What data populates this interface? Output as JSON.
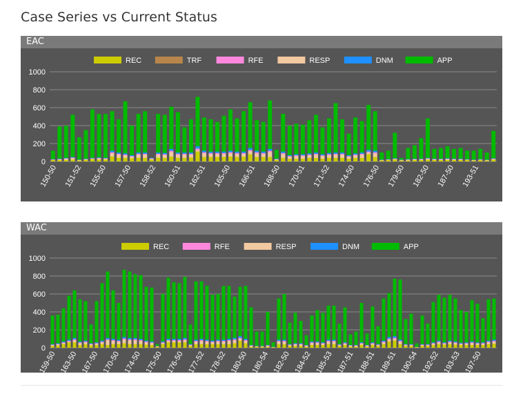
{
  "page": {
    "title": "Case Series vs Current Status"
  },
  "chart_data": [
    {
      "type": "bar",
      "stacked": true,
      "title": "EAC",
      "ylim": [
        0,
        1000
      ],
      "yticks": [
        0,
        200,
        400,
        600,
        800,
        1000
      ],
      "grid": true,
      "legend": "top-center",
      "series": [
        {
          "name": "REC",
          "color": "#cccc00"
        },
        {
          "name": "TRF",
          "color": "#b8864b"
        },
        {
          "name": "RFE",
          "color": "#ff88dd"
        },
        {
          "name": "RESP",
          "color": "#f2c9a0"
        },
        {
          "name": "DNM",
          "color": "#1e90ff"
        },
        {
          "name": "APP",
          "color": "#00bb00"
        }
      ],
      "tick_labels": [
        "150-50",
        "151-52",
        "155-50",
        "157-50",
        "158-52",
        "160-51",
        "162-51",
        "165-50",
        "166-51",
        "168-50",
        "170-51",
        "171-52",
        "174-50",
        "176-50",
        "179-50",
        "182-50",
        "187-50",
        "193-51"
      ],
      "totals": [
        120,
        390,
        400,
        520,
        270,
        350,
        580,
        530,
        530,
        560,
        470,
        670,
        400,
        530,
        560,
        40,
        530,
        520,
        610,
        550,
        380,
        470,
        720,
        490,
        470,
        440,
        510,
        580,
        480,
        560,
        660,
        460,
        440,
        680,
        130,
        530,
        400,
        420,
        410,
        460,
        520,
        380,
        480,
        650,
        470,
        310,
        490,
        450,
        630,
        560,
        100,
        120,
        320,
        40,
        150,
        180,
        260,
        480,
        140,
        150,
        170,
        140,
        150,
        120,
        120,
        140,
        100,
        340
      ],
      "rec": [
        15,
        15,
        15,
        20,
        10,
        15,
        25,
        20,
        20,
        55,
        40,
        40,
        35,
        40,
        40,
        20,
        40,
        40,
        55,
        40,
        40,
        45,
        110,
        50,
        50,
        50,
        50,
        55,
        50,
        55,
        80,
        50,
        50,
        50,
        15,
        40,
        30,
        30,
        30,
        40,
        40,
        30,
        40,
        40,
        40,
        30,
        40,
        40,
        80,
        50,
        10,
        15,
        20,
        10,
        10,
        15,
        15,
        20,
        15,
        15,
        15,
        15,
        15,
        15,
        10,
        15,
        10,
        20
      ],
      "stack": [
        25,
        30,
        40,
        50,
        20,
        30,
        40,
        45,
        40,
        120,
        100,
        90,
        70,
        100,
        100,
        40,
        100,
        95,
        140,
        100,
        100,
        100,
        170,
        120,
        110,
        110,
        110,
        120,
        110,
        110,
        150,
        120,
        110,
        140,
        30,
        110,
        70,
        80,
        80,
        90,
        100,
        80,
        95,
        100,
        100,
        70,
        90,
        100,
        130,
        120,
        20,
        25,
        35,
        20,
        25,
        30,
        30,
        40,
        30,
        30,
        35,
        30,
        30,
        25,
        20,
        25,
        20,
        35
      ]
    },
    {
      "type": "bar",
      "stacked": true,
      "title": "WAC",
      "ylim": [
        0,
        1000
      ],
      "yticks": [
        0,
        200,
        400,
        600,
        800,
        1000
      ],
      "grid": true,
      "legend": "top-center",
      "series": [
        {
          "name": "REC",
          "color": "#cccc00"
        },
        {
          "name": "RFE",
          "color": "#ff88dd"
        },
        {
          "name": "RESP",
          "color": "#f2c9a0"
        },
        {
          "name": "DNM",
          "color": "#1e90ff"
        },
        {
          "name": "APP",
          "color": "#00bb00"
        }
      ],
      "tick_labels": [
        "159-50",
        "163-50",
        "167-50",
        "170-50",
        "174-50",
        "175-50",
        "176-50",
        "177-52",
        "178-52",
        "180-50",
        "180-54",
        "182-50",
        "184-52",
        "185-53",
        "187-51",
        "188-51",
        "189-51",
        "190-54",
        "192-52",
        "193-53",
        "197-50"
      ],
      "totals": [
        360,
        370,
        440,
        580,
        640,
        540,
        520,
        260,
        520,
        720,
        850,
        640,
        500,
        870,
        850,
        820,
        810,
        680,
        670,
        40,
        600,
        780,
        730,
        720,
        790,
        260,
        740,
        740,
        690,
        590,
        600,
        690,
        690,
        570,
        680,
        690,
        450,
        180,
        180,
        400,
        60,
        550,
        600,
        280,
        390,
        300,
        140,
        360,
        420,
        390,
        470,
        470,
        270,
        450,
        150,
        180,
        500,
        160,
        460,
        240,
        550,
        610,
        770,
        760,
        320,
        380,
        50,
        360,
        270,
        510,
        590,
        560,
        590,
        550,
        420,
        400,
        530,
        490,
        330,
        540,
        550
      ],
      "rec": [
        20,
        25,
        40,
        60,
        60,
        30,
        40,
        25,
        30,
        40,
        30,
        40,
        40,
        50,
        40,
        40,
        40,
        35,
        30,
        10,
        40,
        60,
        60,
        60,
        60,
        20,
        40,
        40,
        40,
        40,
        40,
        40,
        40,
        50,
        80,
        50,
        10,
        10,
        10,
        10,
        5,
        40,
        40,
        20,
        20,
        20,
        10,
        30,
        30,
        30,
        40,
        40,
        20,
        30,
        10,
        10,
        30,
        10,
        30,
        20,
        40,
        70,
        80,
        40,
        20,
        20,
        5,
        20,
        20,
        30,
        40,
        35,
        40,
        35,
        30,
        30,
        30,
        30,
        30,
        40,
        45
      ],
      "stack": [
        40,
        50,
        70,
        90,
        110,
        70,
        80,
        50,
        60,
        80,
        110,
        100,
        90,
        120,
        110,
        110,
        100,
        80,
        70,
        20,
        70,
        100,
        100,
        100,
        110,
        40,
        90,
        100,
        90,
        80,
        90,
        90,
        100,
        110,
        130,
        100,
        30,
        20,
        20,
        30,
        10,
        90,
        90,
        40,
        50,
        50,
        30,
        70,
        70,
        60,
        90,
        90,
        40,
        60,
        30,
        30,
        60,
        30,
        60,
        40,
        80,
        120,
        130,
        90,
        40,
        40,
        10,
        40,
        40,
        60,
        80,
        60,
        80,
        70,
        55,
        60,
        70,
        60,
        60,
        80,
        90
      ]
    }
  ]
}
